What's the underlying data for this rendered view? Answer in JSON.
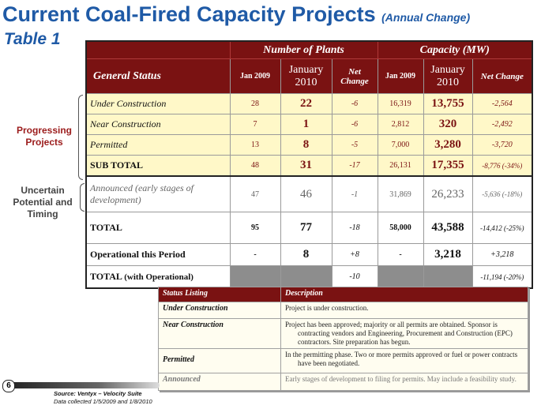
{
  "title": "Current Coal-Fired Capacity Projects",
  "title_note": "(Annual Change)",
  "subtitle": "Table 1",
  "side_labels": {
    "progressing": "Progressing Projects",
    "uncertain": "Uncertain Potential and Timing"
  },
  "table": {
    "group_plants": "Number of Plants",
    "group_capacity": "Capacity (MW)",
    "status_header": "General Status",
    "col_jan2009": "Jan 2009",
    "col_jan2010": "January 2010",
    "col_net": "Net Change",
    "rows": [
      {
        "label": "Under Construction",
        "p2009": "28",
        "p2010": "22",
        "pchg": "-6",
        "c2009": "16,319",
        "c2010": "13,755",
        "cchg": "-2,564"
      },
      {
        "label": "Near Construction",
        "p2009": "7",
        "p2010": "1",
        "pchg": "-6",
        "c2009": "2,812",
        "c2010": "320",
        "cchg": "-2,492"
      },
      {
        "label": "Permitted",
        "p2009": "13",
        "p2010": "8",
        "pchg": "-5",
        "c2009": "7,000",
        "c2010": "3,280",
        "cchg": "-3,720"
      },
      {
        "label": "SUB TOTAL",
        "p2009": "48",
        "p2010": "31",
        "pchg": "-17",
        "c2009": "26,131",
        "c2010": "17,355",
        "cchg": "-8,776 (-34%)"
      },
      {
        "label": "Announced (early stages of development)",
        "p2009": "47",
        "p2010": "46",
        "pchg": "-1",
        "c2009": "31,869",
        "c2010": "26,233",
        "cchg": "-5,636 (-18%)"
      },
      {
        "label": "TOTAL",
        "p2009": "95",
        "p2010": "77",
        "pchg": "-18",
        "c2009": "58,000",
        "c2010": "43,588",
        "cchg": "-14,412 (-25%)"
      },
      {
        "label": "Operational this Period",
        "p2009": "-",
        "p2010": "8",
        "pchg": "+8",
        "c2009": "-",
        "c2010": "3,218",
        "cchg": "+3,218"
      },
      {
        "label": "TOTAL",
        "label_suffix": "(with Operational)",
        "pchg": "-10",
        "cchg": "-11,194 (-20%)"
      }
    ]
  },
  "legend": {
    "col_status": "Status Listing",
    "col_desc": "Description",
    "rows": [
      {
        "status": "Under Construction",
        "desc": "Project is under construction."
      },
      {
        "status": "Near Construction",
        "desc": "Project has been approved; majority or all permits are obtained. Sponsor is contracting vendors and Engineering, Procurement and Construction (EPC) contractors. Site preparation has begun."
      },
      {
        "status": "Permitted",
        "desc": "In the permitting phase. Two or more permits approved or fuel or power contracts have been negotiated."
      },
      {
        "status": "Announced",
        "desc": "Early stages of development to filing for permits. May include a feasibility study."
      }
    ]
  },
  "page_number": "6",
  "source_line1": "Source: Ventyx – Velocity Suite",
  "source_line2": "Data collected 1/5/2009 and 1/8/2010"
}
